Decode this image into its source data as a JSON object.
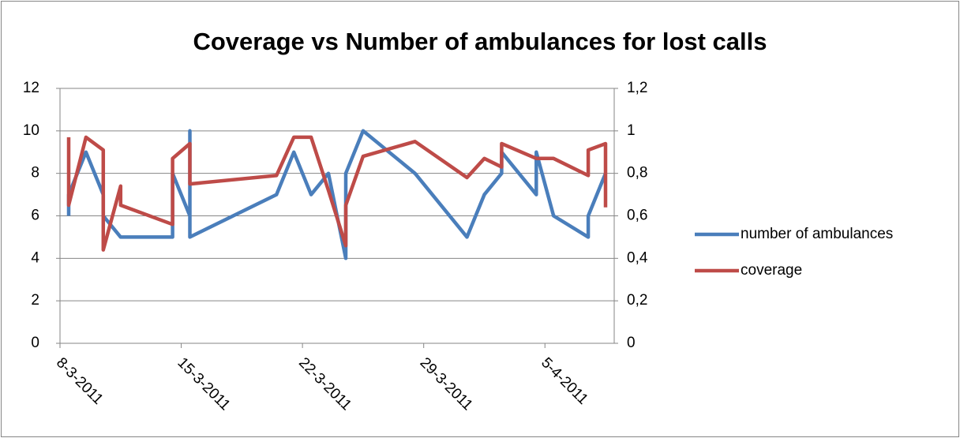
{
  "chart_data": {
    "type": "line",
    "title": "Coverage vs Number of ambulances for lost calls",
    "x": [
      "2011-03-08",
      "2011-03-08",
      "2011-03-09",
      "2011-03-10",
      "2011-03-10",
      "2011-03-11",
      "2011-03-11",
      "2011-03-14",
      "2011-03-14",
      "2011-03-15",
      "2011-03-15",
      "2011-03-15",
      "2011-03-20",
      "2011-03-21",
      "2011-03-22",
      "2011-03-23",
      "2011-03-24",
      "2011-03-24",
      "2011-03-25",
      "2011-03-28",
      "2011-03-31",
      "2011-04-01",
      "2011-04-02",
      "2011-04-02",
      "2011-04-04",
      "2011-04-04",
      "2011-04-05",
      "2011-04-07",
      "2011-04-07",
      "2011-04-08",
      "2011-04-08"
    ],
    "xlim": [
      "2011-03-08",
      "2011-04-09"
    ],
    "xticks": [
      {
        "value": "2011-03-08",
        "label": "8-3-2011"
      },
      {
        "value": "2011-03-15",
        "label": "15-3-2011"
      },
      {
        "value": "2011-03-22",
        "label": "22-3-2011"
      },
      {
        "value": "2011-03-29",
        "label": "29-3-2011"
      },
      {
        "value": "2011-04-05",
        "label": "5-4-2011"
      }
    ],
    "ylim": [
      0,
      12
    ],
    "yticks": [
      0,
      2,
      4,
      6,
      8,
      10,
      12
    ],
    "y2lim": [
      0,
      1.2
    ],
    "y2ticks": [
      0,
      {
        "value": 0.2,
        "label": "0,2"
      },
      {
        "value": 0.4,
        "label": "0,4"
      },
      {
        "value": 0.6,
        "label": "0,6"
      },
      {
        "value": 0.8,
        "label": "0,8"
      },
      1,
      {
        "value": 1.2,
        "label": "1,2"
      }
    ],
    "grid": true,
    "legend": "right",
    "series": [
      {
        "name": "number of ambulances",
        "color": "#4a7ebb",
        "values": [
          6,
          7,
          9,
          7,
          6,
          5,
          5,
          5,
          8,
          6,
          10,
          5,
          7,
          9,
          7,
          8,
          4,
          8,
          10,
          8,
          5,
          7,
          8,
          9,
          7,
          9,
          6,
          5,
          6,
          8,
          8
        ]
      },
      {
        "name": "coverage",
        "color": "#be4b48",
        "axis": "y2",
        "values": [
          0.97,
          0.65,
          0.97,
          0.91,
          0.44,
          0.74,
          0.65,
          0.56,
          0.87,
          0.94,
          0.75,
          0.75,
          0.79,
          0.97,
          0.97,
          0.72,
          0.46,
          0.65,
          0.88,
          0.95,
          0.78,
          0.87,
          0.83,
          0.94,
          0.87,
          0.87,
          0.87,
          0.79,
          0.91,
          0.94,
          0.64
        ]
      }
    ]
  }
}
